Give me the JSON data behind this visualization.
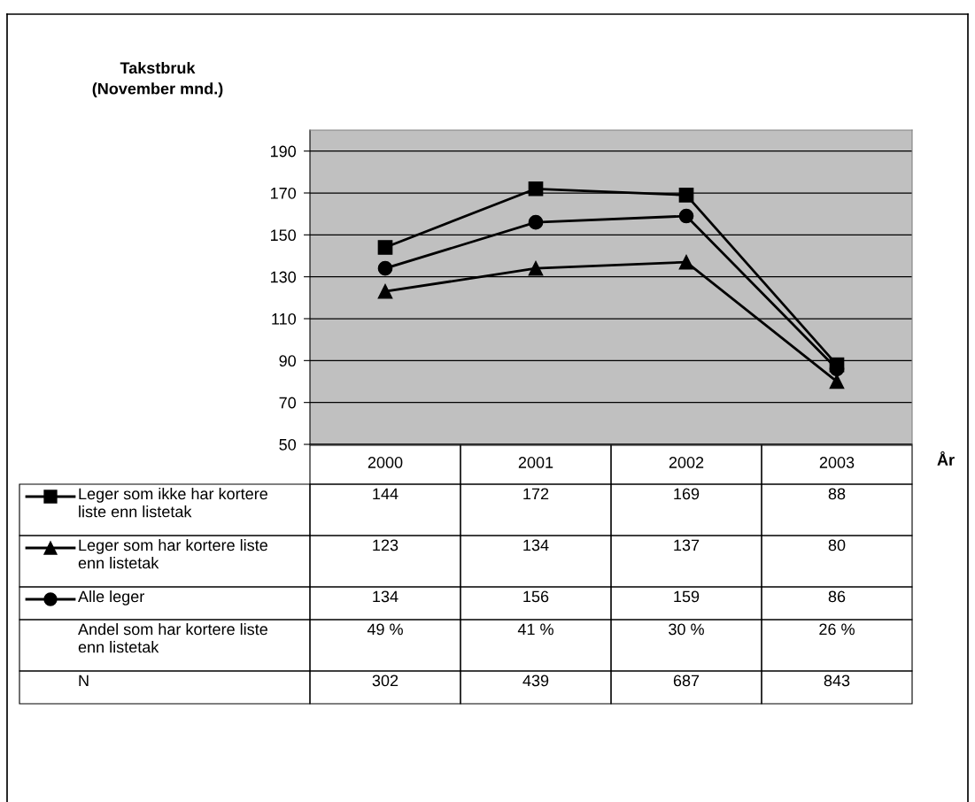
{
  "chart_data": {
    "type": "line",
    "ylabel": "Takstbruk (November mnd.)",
    "xlabel": "År",
    "categories": [
      "2000",
      "2001",
      "2002",
      "2003"
    ],
    "series": [
      {
        "name": "Leger som ikke har kortere liste enn listetak",
        "color": "#000000",
        "marker": "square",
        "values": [
          144,
          172,
          169,
          88
        ]
      },
      {
        "name": "Leger som har kortere liste enn listetak",
        "color": "#000000",
        "marker": "triangle",
        "values": [
          123,
          134,
          137,
          80
        ]
      },
      {
        "name": "Alle leger",
        "color": "#000000",
        "marker": "circle",
        "values": [
          134,
          156,
          159,
          86
        ]
      }
    ],
    "ylim": [
      50,
      200
    ],
    "yticks": [
      50,
      70,
      90,
      110,
      130,
      150,
      170,
      190
    ],
    "grid": "y",
    "legend": "bottom",
    "data_labels": true,
    "line_style": "solid",
    "annotations": [
      "Andel som har kortere liste enn listetak",
      "49 %",
      "41 %",
      "30 %",
      "26 %",
      "N",
      "302",
      "439",
      "687",
      "843"
    ]
  }
}
